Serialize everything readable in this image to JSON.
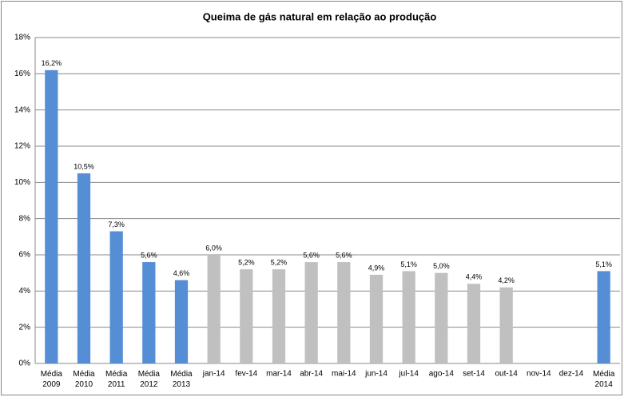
{
  "chart_data": {
    "type": "bar",
    "title": "Queima de gás natural em relação ao produção",
    "categories": [
      "Média 2009",
      "Média 2010",
      "Média 2011",
      "Média 2012",
      "Média 2013",
      "jan-14",
      "fev-14",
      "mar-14",
      "abr-14",
      "mai-14",
      "jun-14",
      "jul-14",
      "ago-14",
      "set-14",
      "out-14",
      "nov-14",
      "dez-14",
      "Média 2014"
    ],
    "values": [
      16.2,
      10.5,
      7.3,
      5.6,
      4.6,
      6.0,
      5.2,
      5.2,
      5.6,
      5.6,
      4.9,
      5.1,
      5.0,
      4.4,
      4.2,
      null,
      null,
      5.1
    ],
    "value_labels": [
      "16,2%",
      "10,5%",
      "7,3%",
      "5,6%",
      "4,6%",
      "6,0%",
      "5,2%",
      "5,2%",
      "5,6%",
      "5,6%",
      "4,9%",
      "5,1%",
      "5,0%",
      "4,4%",
      "4,2%",
      null,
      null,
      "5,1%"
    ],
    "colors": [
      "#558ed5",
      "#558ed5",
      "#558ed5",
      "#558ed5",
      "#558ed5",
      "#c0c0c0",
      "#c0c0c0",
      "#c0c0c0",
      "#c0c0c0",
      "#c0c0c0",
      "#c0c0c0",
      "#c0c0c0",
      "#c0c0c0",
      "#c0c0c0",
      "#c0c0c0",
      "#c0c0c0",
      "#c0c0c0",
      "#558ed5"
    ],
    "ylim": [
      0,
      18
    ],
    "yticks": [
      {
        "value": 0,
        "label": "0%"
      },
      {
        "value": 2,
        "label": "2%"
      },
      {
        "value": 4,
        "label": "4%"
      },
      {
        "value": 6,
        "label": "6%"
      },
      {
        "value": 8,
        "label": "8%"
      },
      {
        "value": 10,
        "label": "10%"
      },
      {
        "value": 12,
        "label": "12%"
      },
      {
        "value": 14,
        "label": "14%"
      },
      {
        "value": 16,
        "label": "16%"
      },
      {
        "value": 18,
        "label": "18%"
      }
    ],
    "grid": true
  }
}
